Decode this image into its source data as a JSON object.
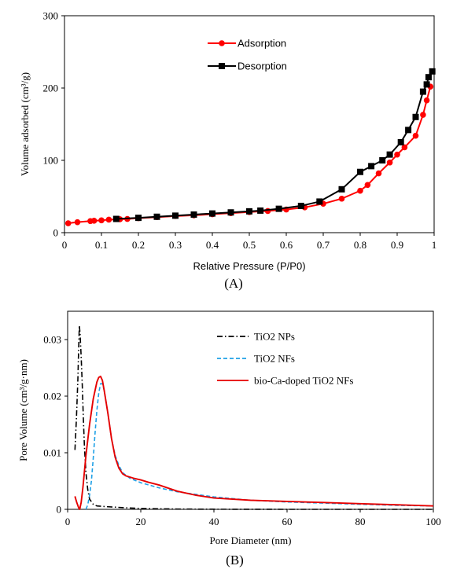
{
  "chart_data": [
    {
      "type": "line",
      "panel_label": "(A)",
      "xlabel": "Relative Pressure  (P/P0)",
      "ylabel": "Volume adsorbed  (cm³/g)",
      "xlim": [
        0,
        1
      ],
      "ylim": [
        0,
        300
      ],
      "xticks": [
        "0",
        "0.1",
        "0.2",
        "0.3",
        "0.4",
        "0.5",
        "0.6",
        "0.7",
        "0.8",
        "0.9",
        "1"
      ],
      "yticks": [
        "0",
        "100",
        "200",
        "300"
      ],
      "grid": false,
      "legend_position": "top-center",
      "series": [
        {
          "name": "Adsorption",
          "color": "#ff0000",
          "marker": "circle",
          "x": [
            0.01,
            0.035,
            0.07,
            0.08,
            0.1,
            0.12,
            0.15,
            0.17,
            0.2,
            0.25,
            0.3,
            0.35,
            0.4,
            0.45,
            0.5,
            0.55,
            0.6,
            0.65,
            0.7,
            0.75,
            0.8,
            0.82,
            0.85,
            0.88,
            0.9,
            0.92,
            0.95,
            0.97,
            0.98,
            0.99
          ],
          "y": [
            13,
            14.5,
            16,
            16.5,
            17,
            18,
            18.5,
            19,
            20,
            21.5,
            23,
            24,
            25.5,
            27,
            28.5,
            30,
            32,
            35,
            40,
            47,
            58,
            66,
            82,
            97,
            108,
            118,
            134,
            163,
            183,
            202
          ]
        },
        {
          "name": "Desorption",
          "color": "#000000",
          "marker": "square",
          "x": [
            0.14,
            0.2,
            0.25,
            0.3,
            0.35,
            0.4,
            0.45,
            0.5,
            0.53,
            0.58,
            0.64,
            0.69,
            0.75,
            0.8,
            0.83,
            0.86,
            0.88,
            0.91,
            0.93,
            0.95,
            0.97,
            0.98,
            0.985,
            0.995
          ],
          "y": [
            19,
            20.5,
            22,
            23.5,
            25,
            26.5,
            28,
            29.5,
            30.5,
            33,
            37,
            43,
            60,
            84,
            92,
            100,
            108,
            125,
            142,
            160,
            195,
            205,
            215,
            223
          ]
        }
      ]
    },
    {
      "type": "line",
      "panel_label": "(B)",
      "xlabel": "Pore Diameter (nm)",
      "ylabel": "Pore Volume (cm³/g·nm)",
      "xlim": [
        0,
        100
      ],
      "ylim": [
        0,
        0.035
      ],
      "xticks": [
        "0",
        "20",
        "40",
        "60",
        "80",
        "100"
      ],
      "yticks": [
        "0",
        "0.01",
        "0.02",
        "0.03"
      ],
      "grid": false,
      "legend_position": "top-right",
      "series": [
        {
          "name": "TiO2 NPs",
          "color": "#000000",
          "style": "dash-dot",
          "x": [
            2.0,
            2.4,
            2.8,
            3.0,
            3.2,
            3.4,
            3.7,
            4.0,
            4.3,
            4.6,
            5.0,
            5.5,
            6.0,
            7.0,
            8.0,
            10,
            15,
            20,
            30,
            40,
            50,
            60,
            80,
            100
          ],
          "y": [
            0.0105,
            0.016,
            0.023,
            0.028,
            0.0325,
            0.031,
            0.027,
            0.022,
            0.016,
            0.011,
            0.0065,
            0.0035,
            0.0018,
            0.0009,
            0.0006,
            0.0005,
            0.0003,
            0.00015,
            5e-05,
            2e-05,
            1e-05,
            0.0,
            0.0,
            0.0
          ]
        },
        {
          "name": "TiO2 NFs",
          "color": "#1ea0e6",
          "style": "dashed",
          "x": [
            5.0,
            5.5,
            6.0,
            6.5,
            7.0,
            7.5,
            8.0,
            8.5,
            9.0,
            9.5,
            10,
            11,
            12,
            13,
            14,
            15,
            17,
            20,
            25,
            30,
            40,
            50,
            60,
            70,
            80,
            90,
            100
          ],
          "y": [
            0.0,
            0.0008,
            0.0025,
            0.005,
            0.009,
            0.0135,
            0.0175,
            0.0205,
            0.0222,
            0.0222,
            0.021,
            0.017,
            0.0125,
            0.0095,
            0.0078,
            0.0065,
            0.0055,
            0.0047,
            0.0038,
            0.0031,
            0.0022,
            0.0016,
            0.0013,
            0.0011,
            0.0009,
            0.0007,
            0.0006
          ]
        },
        {
          "name": "bio-Ca-doped TiO2 NFs",
          "color": "#e60000",
          "style": "solid",
          "x": [
            2.0,
            2.5,
            3.0,
            3.3,
            3.7,
            4.2,
            5.0,
            6.0,
            7.0,
            8.0,
            8.5,
            9.0,
            9.5,
            10,
            11,
            12,
            13,
            14,
            15,
            16,
            18,
            20,
            22,
            25,
            30,
            35,
            40,
            50,
            60,
            70,
            80,
            90,
            100
          ],
          "y": [
            0.0023,
            0.0012,
            0.0003,
            0.0,
            0.0012,
            0.004,
            0.0095,
            0.015,
            0.0195,
            0.0225,
            0.0233,
            0.0235,
            0.0228,
            0.021,
            0.017,
            0.0125,
            0.0092,
            0.0073,
            0.0063,
            0.0059,
            0.0055,
            0.0052,
            0.0048,
            0.0043,
            0.0032,
            0.0025,
            0.002,
            0.0016,
            0.0014,
            0.0012,
            0.001,
            0.0008,
            0.0006
          ]
        }
      ]
    }
  ]
}
